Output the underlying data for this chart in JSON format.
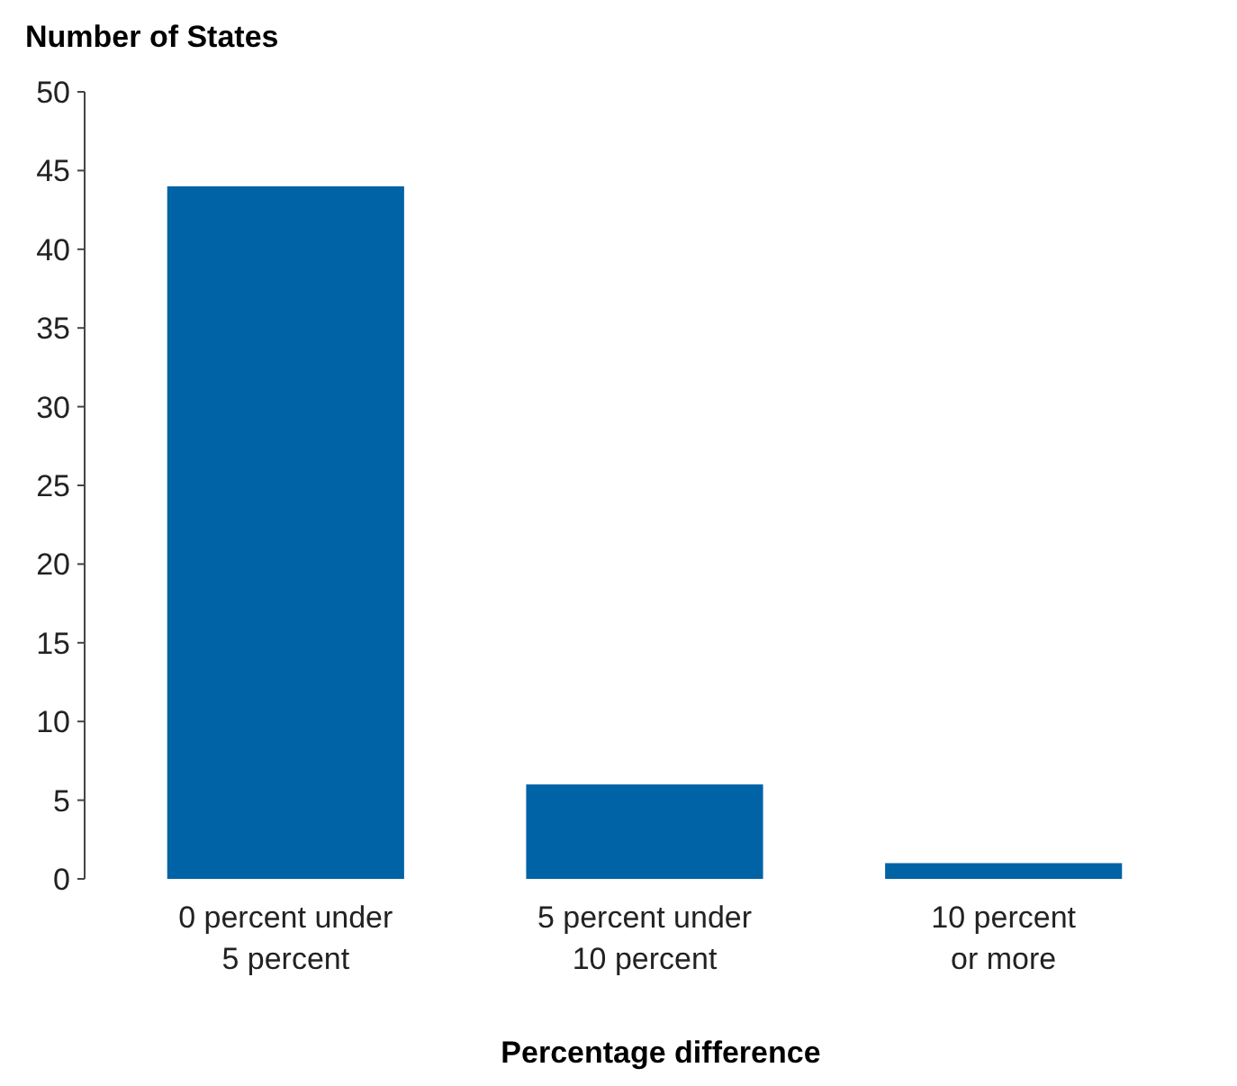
{
  "chart_data": {
    "type": "bar",
    "ylabel": "Number of States",
    "xlabel": "Percentage difference",
    "categories": [
      "0 percent under\n5 percent",
      "5 percent under\n10 percent",
      "10 percent\nor more"
    ],
    "values": [
      44,
      6,
      1
    ],
    "color": "#0063a6",
    "ylim": [
      0,
      50
    ],
    "yticks": [
      0,
      5,
      10,
      15,
      20,
      25,
      30,
      35,
      40,
      45,
      50
    ],
    "grid": false
  }
}
